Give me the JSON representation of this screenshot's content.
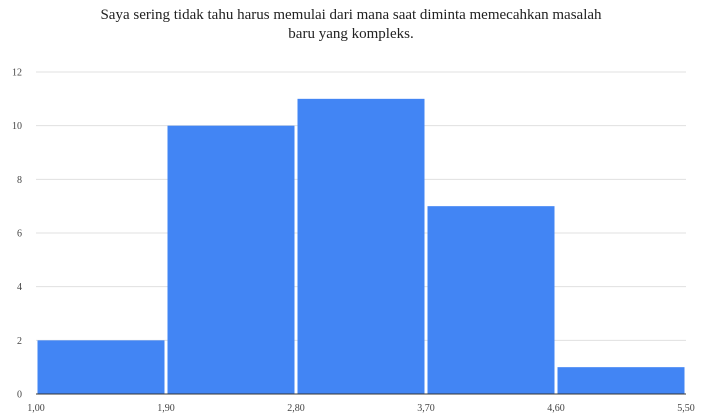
{
  "chart_data": {
    "type": "bar",
    "title_lines": [
      "Saya sering tidak tahu harus memulai dari mana saat diminta memecahkan masalah",
      "baru yang kompleks."
    ],
    "bin_edges": [
      "1,00",
      "1,90",
      "2,80",
      "3,70",
      "4,60",
      "5,50"
    ],
    "bin_edge_values": [
      1.0,
      1.9,
      2.8,
      3.7,
      4.6,
      5.5
    ],
    "values": [
      2,
      10,
      11,
      7,
      1
    ],
    "ylim": [
      0,
      12
    ],
    "y_ticks": [
      0,
      2,
      4,
      6,
      8,
      10,
      12
    ],
    "bar_color": "#4285f4",
    "grid": true,
    "xlabel": "",
    "ylabel": ""
  }
}
